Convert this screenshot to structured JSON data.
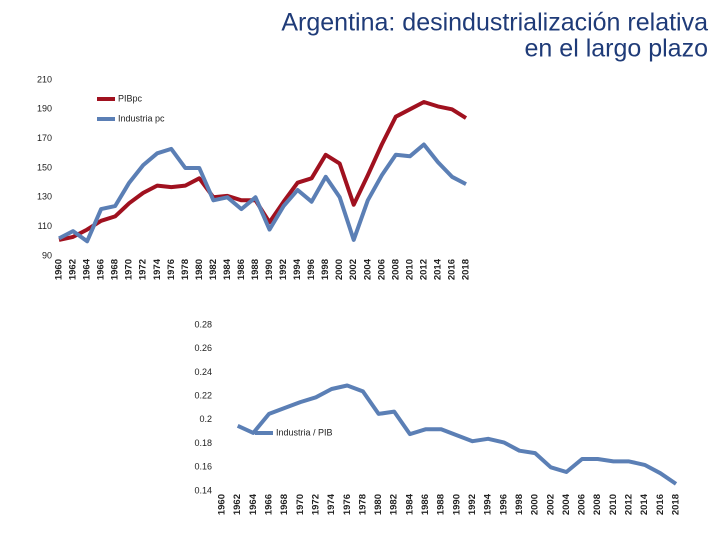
{
  "title": [
    "Argentina: desindustrialización relativa",
    "en el largo plazo"
  ],
  "chart_data": [
    {
      "type": "line",
      "categories": [
        "1960",
        "1962",
        "1964",
        "1966",
        "1968",
        "1970",
        "1972",
        "1974",
        "1976",
        "1978",
        "1980",
        "1982",
        "1984",
        "1986",
        "1988",
        "1990",
        "1992",
        "1994",
        "1996",
        "1998",
        "2000",
        "2002",
        "2004",
        "2006",
        "2008",
        "2010",
        "2012",
        "2014",
        "2016",
        "2018"
      ],
      "series": [
        {
          "name": "PIBpc",
          "color": "#a0111f",
          "values": [
            101,
            103,
            108,
            114,
            117,
            126,
            133,
            138,
            137,
            138,
            143,
            130,
            131,
            128,
            128,
            113,
            127,
            140,
            143,
            159,
            153,
            125,
            145,
            166,
            185,
            190,
            195,
            192,
            190,
            184
          ]
        },
        {
          "name": "Industria pc",
          "color": "#5b7fb5",
          "values": [
            102,
            107,
            100,
            122,
            124,
            140,
            152,
            160,
            163,
            150,
            150,
            128,
            130,
            122,
            130,
            108,
            124,
            135,
            127,
            144,
            130,
            101,
            128,
            145,
            159,
            158,
            166,
            154,
            144,
            139
          ]
        }
      ],
      "ylim": [
        90,
        210
      ],
      "yticks": [
        90,
        110,
        130,
        150,
        170,
        190,
        210
      ],
      "grid": false
    },
    {
      "type": "line",
      "categories": [
        "1960",
        "1962",
        "1964",
        "1966",
        "1968",
        "1970",
        "1972",
        "1974",
        "1976",
        "1978",
        "1980",
        "1982",
        "1984",
        "1986",
        "1988",
        "1990",
        "1992",
        "1994",
        "1996",
        "1998",
        "2000",
        "2002",
        "2004",
        "2006",
        "2008",
        "2010",
        "2012",
        "2014",
        "2016",
        "2018"
      ],
      "series": [
        {
          "name": "Industria / PIB",
          "color": "#5b7fb5",
          "values": [
            null,
            0.195,
            0.189,
            0.205,
            0.21,
            0.215,
            0.219,
            0.226,
            0.229,
            0.224,
            0.205,
            0.207,
            0.188,
            0.192,
            0.192,
            0.187,
            0.182,
            0.184,
            0.181,
            0.174,
            0.172,
            0.16,
            0.156,
            0.167,
            0.167,
            0.165,
            0.165,
            0.162,
            0.155,
            0.146
          ]
        }
      ],
      "ylim": [
        0.14,
        0.28
      ],
      "yticks": [
        0.14,
        0.16,
        0.18,
        0.2,
        0.22,
        0.24,
        0.26,
        0.28
      ],
      "grid": false
    }
  ]
}
